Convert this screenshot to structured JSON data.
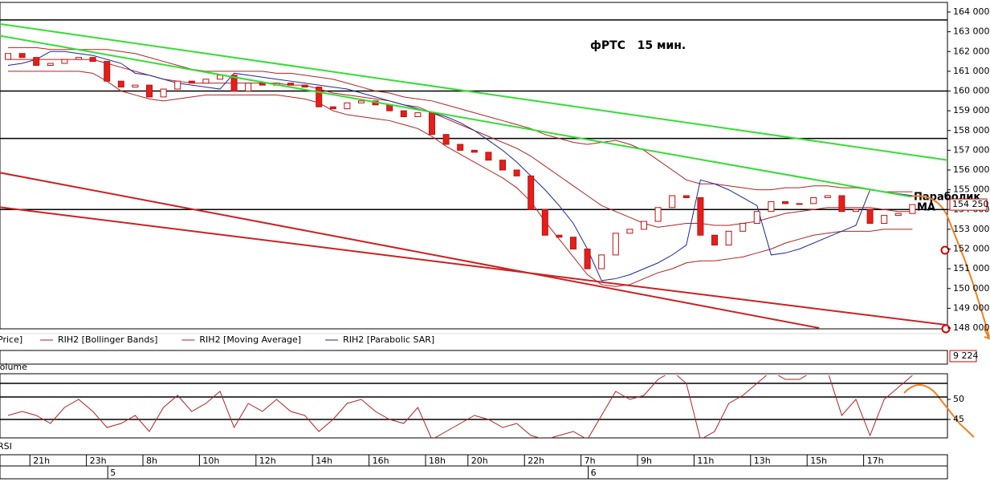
{
  "chart_data": {
    "type": "candlestick",
    "title": "фРТС   15 мин.",
    "times": [
      null,
      null,
      "21h",
      null,
      null,
      null,
      "23h",
      null,
      null,
      null,
      "8h",
      null,
      null,
      null,
      "10h",
      null,
      null,
      null,
      "12h",
      null,
      null,
      null,
      "14h",
      null,
      null,
      null,
      "16h",
      null,
      null,
      null,
      "18h",
      null,
      null,
      "20h",
      null,
      null,
      null,
      "22h",
      null,
      null,
      null,
      "7h",
      null,
      null,
      null,
      "9h",
      null,
      null,
      null,
      "11h",
      null,
      null,
      null,
      "13h",
      null,
      null,
      null,
      "15h",
      null,
      null,
      null,
      "17h",
      null,
      null,
      null
    ],
    "days": [
      null,
      null,
      null,
      null,
      null,
      null,
      null,
      "5",
      null,
      null,
      null,
      null,
      null,
      null,
      null,
      null,
      null,
      null,
      null,
      null,
      null,
      null,
      null,
      null,
      null,
      null,
      null,
      null,
      null,
      null,
      null,
      null,
      null,
      null,
      null,
      null,
      null,
      null,
      null,
      null,
      null,
      "6",
      null,
      null,
      null,
      null,
      null,
      null,
      null,
      null,
      null,
      null,
      null,
      null,
      null,
      null,
      null,
      null,
      null,
      null,
      null,
      null,
      null,
      null,
      null
    ],
    "open": [
      161600,
      161900,
      161700,
      161300,
      161400,
      161600,
      161700,
      161500,
      160500,
      160200,
      160300,
      159700,
      160100,
      160500,
      160400,
      160600,
      160800,
      160000,
      160400,
      160300,
      160400,
      160300,
      160200,
      159200,
      159100,
      159400,
      159500,
      159300,
      159000,
      158700,
      158900,
      157800,
      157300,
      157000,
      156900,
      156500,
      156000,
      155700,
      154000,
      152700,
      152600,
      152000,
      151000,
      151700,
      152800,
      153000,
      153400,
      154100,
      154700,
      154600,
      152700,
      152200,
      152900,
      153300,
      153900,
      154400,
      154300,
      154300,
      154600,
      154700,
      153900,
      154000,
      153300,
      153700,
      153800
    ],
    "close": [
      161900,
      161700,
      161300,
      161400,
      161600,
      161700,
      161500,
      160500,
      160200,
      160300,
      159700,
      160100,
      160500,
      160400,
      160600,
      160800,
      160000,
      160400,
      160300,
      160400,
      160300,
      160200,
      159200,
      159100,
      159400,
      159500,
      159300,
      159000,
      158700,
      158900,
      157800,
      157300,
      157000,
      156900,
      156500,
      156000,
      155700,
      154000,
      152700,
      152600,
      152000,
      151000,
      151700,
      152800,
      153000,
      153400,
      154100,
      154700,
      154600,
      152700,
      152200,
      152900,
      153300,
      153900,
      154400,
      154300,
      154300,
      154600,
      154700,
      153900,
      154000,
      153300,
      153700,
      153800,
      154250
    ],
    "last_price_label": "154 250",
    "color_down": "#e3201b",
    "color_up": "#ffffff",
    "ylim": [
      148000,
      164000
    ],
    "yticks": [
      {
        "value": 148000,
        "label": "148 000"
      },
      {
        "value": 149000,
        "label": "149 000"
      },
      {
        "value": 150000,
        "label": "150 000"
      },
      {
        "value": 151000,
        "label": "151 000"
      },
      {
        "value": 152000,
        "label": "152 000"
      },
      {
        "value": 153000,
        "label": "153 000"
      },
      {
        "value": 154000,
        "label": "154 000"
      },
      {
        "value": 155000,
        "label": "155 000"
      },
      {
        "value": 156000,
        "label": "156 000"
      },
      {
        "value": 157000,
        "label": "157 000"
      },
      {
        "value": 158000,
        "label": "158 000"
      },
      {
        "value": 159000,
        "label": "159 000"
      },
      {
        "value": 160000,
        "label": "160 000"
      },
      {
        "value": 161000,
        "label": "161 000"
      },
      {
        "value": 162000,
        "label": "162 000"
      },
      {
        "value": 163000,
        "label": "163 000"
      },
      {
        "value": 164000,
        "label": "164 000"
      }
    ],
    "levels": [
      163600,
      160000,
      157600,
      154000
    ],
    "trendlines": [
      {
        "color": "#33dd33",
        "x": [
          -0.6,
          66.5
        ],
        "y": [
          163400,
          156500
        ]
      },
      {
        "color": "#33dd33",
        "x": [
          -0.6,
          63.9
        ],
        "y": [
          162800,
          154650
        ]
      },
      {
        "color": "#cc2020",
        "x": [
          -0.6,
          57.4
        ],
        "y": [
          155870,
          148000
        ]
      },
      {
        "color": "#cc2020",
        "x": [
          -0.6,
          66.5
        ],
        "y": [
          154120,
          148150
        ]
      }
    ],
    "series": [
      {
        "name": "RIH2 [Bollinger Bands]",
        "color": "#b22222",
        "values": [
          162200,
          162200,
          162200,
          162100,
          162100,
          162100,
          162100,
          162100,
          162000,
          161900,
          161700,
          161500,
          161300,
          161100,
          161000,
          161000,
          161000,
          161000,
          161000,
          160900,
          160900,
          160800,
          160700,
          160600,
          160400,
          160200,
          160000,
          159900,
          159700,
          159600,
          159500,
          159300,
          159100,
          158900,
          158700,
          158500,
          158300,
          158100,
          157800,
          157600,
          157400,
          157300,
          157400,
          157500,
          157300,
          157000,
          156500,
          156000,
          155500,
          155300,
          155300,
          155200,
          155100,
          155000,
          155000,
          155100,
          155100,
          155200,
          155200,
          155100,
          155100,
          155000,
          154900,
          154900,
          154900
        ],
        "lower": [
          161000,
          161000,
          161000,
          161000,
          161000,
          161000,
          160900,
          160500,
          160000,
          159800,
          159600,
          159500,
          159600,
          159700,
          159800,
          159800,
          159800,
          159800,
          159800,
          159800,
          159700,
          159600,
          159400,
          159000,
          158800,
          158700,
          158600,
          158500,
          158300,
          158100,
          157700,
          157200,
          156800,
          156400,
          156000,
          155600,
          155100,
          154400,
          153400,
          152500,
          151600,
          150700,
          150200,
          150100,
          150200,
          150500,
          150800,
          151000,
          151300,
          151400,
          151400,
          151500,
          151600,
          151800,
          152000,
          152300,
          152500,
          152700,
          152800,
          152900,
          152900,
          152900,
          153000,
          153000,
          153000
        ]
      },
      {
        "name": "RIH2 [Moving Average]",
        "color": "#b22222",
        "values": [
          161600,
          161600,
          161600,
          161600,
          161600,
          161600,
          161600,
          161400,
          161200,
          161000,
          160800,
          160600,
          160500,
          160400,
          160400,
          160400,
          160400,
          160400,
          160400,
          160400,
          160300,
          160300,
          160100,
          159900,
          159800,
          159700,
          159600,
          159500,
          159300,
          159200,
          158900,
          158600,
          158300,
          158000,
          157700,
          157400,
          157100,
          156700,
          156200,
          155700,
          155200,
          154700,
          154200,
          153900,
          153600,
          153300,
          153100,
          153200,
          153300,
          153300,
          153200,
          153200,
          153300,
          153400,
          153600,
          153800,
          153900,
          154000,
          154100,
          154100,
          154100,
          154100,
          154000,
          153900,
          153900
        ]
      },
      {
        "name": "RIH2 [Parabolic SAR]",
        "color": "#1a2a9a",
        "values": [
          161300,
          161400,
          161600,
          162000,
          162000,
          161900,
          161800,
          161600,
          161400,
          160900,
          160800,
          160600,
          160400,
          160300,
          160200,
          160100,
          160900,
          160800,
          160700,
          160600,
          160500,
          160400,
          160300,
          160200,
          160100,
          159900,
          159700,
          159500,
          159300,
          159100,
          158900,
          158700,
          158400,
          158000,
          157500,
          157000,
          156400,
          155700,
          155000,
          154200,
          153300,
          152000,
          150400,
          150500,
          150700,
          151000,
          151300,
          151700,
          152200,
          155500,
          155300,
          155000,
          154600,
          154200,
          151700,
          151800,
          152000,
          152300,
          152600,
          152900,
          153200,
          155000,
          154900,
          154800,
          154700
        ]
      }
    ],
    "price_legend": "Price]",
    "annotations": [
      "Параболик",
      "МА"
    ],
    "volume": {
      "label": "Volume",
      "last_label": "9 224"
    },
    "rsi": {
      "label": "RSI",
      "color": "#b22222",
      "ylim": [
        40.6,
        55.6
      ],
      "yticks": [
        50,
        45
      ],
      "levels": [
        54,
        50.6,
        45
      ],
      "values": [
        46,
        47,
        46,
        44,
        48,
        50,
        47,
        43,
        44,
        46,
        42,
        48,
        51,
        47,
        49,
        52,
        43,
        49,
        47,
        50,
        47,
        46,
        42,
        45,
        49,
        50,
        47,
        45,
        44,
        48,
        40,
        42,
        44,
        46,
        45,
        43,
        44,
        41,
        40,
        41,
        42,
        40,
        46,
        52,
        50,
        51,
        55,
        57,
        54,
        40,
        42,
        49,
        51,
        54,
        57,
        55,
        55,
        57,
        57,
        46,
        50,
        41,
        50,
        53,
        56
      ]
    }
  }
}
